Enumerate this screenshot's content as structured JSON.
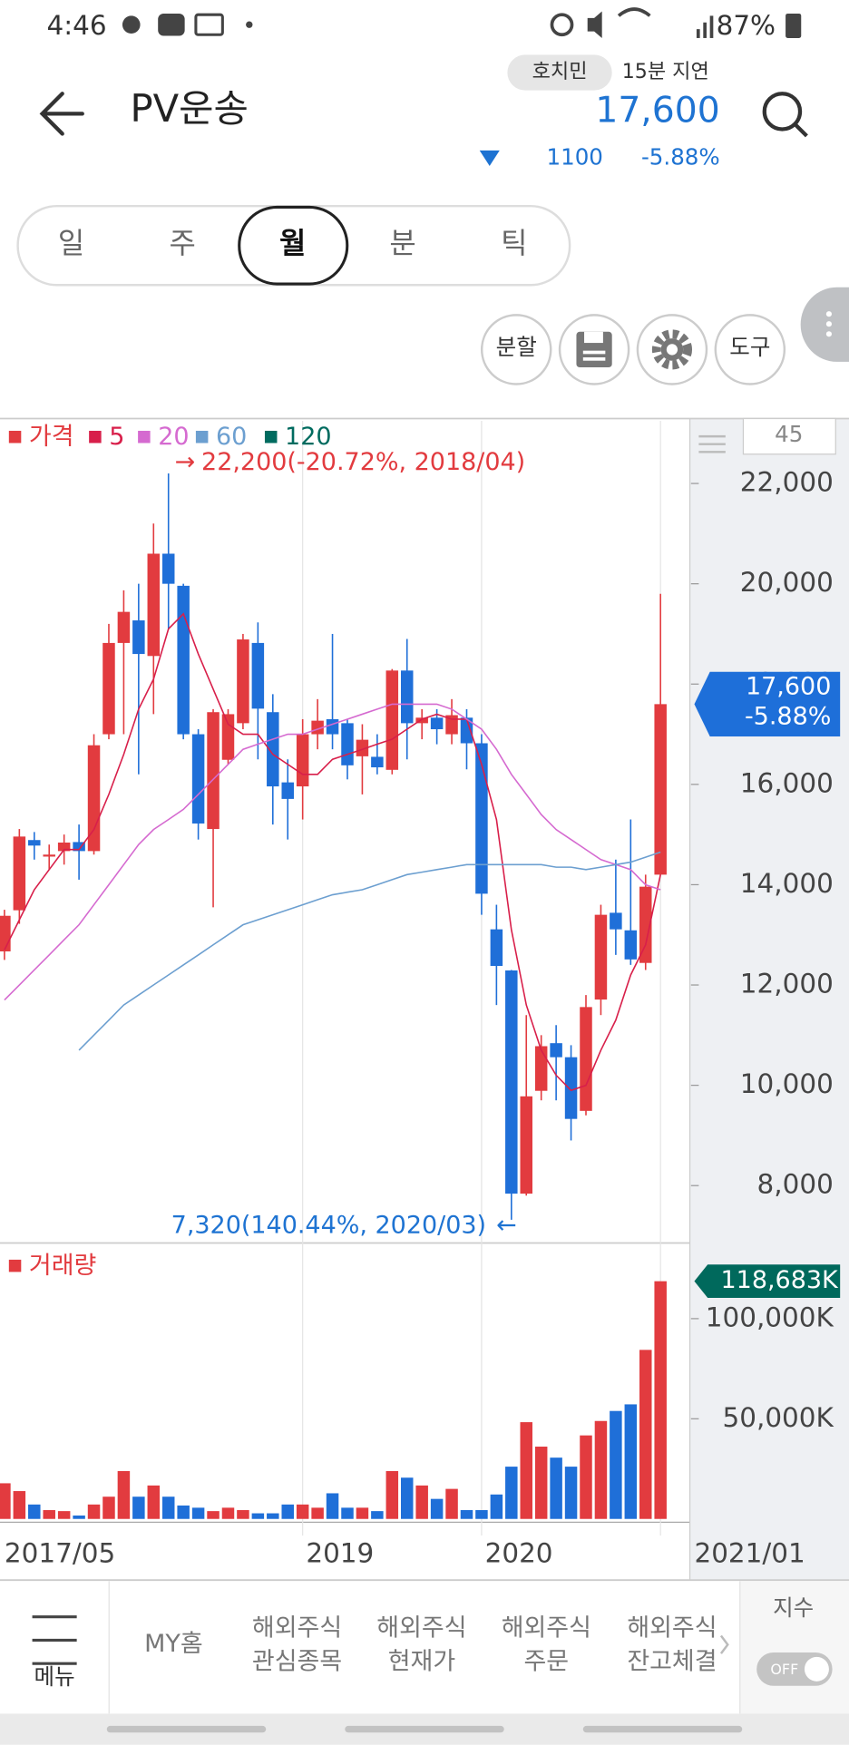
{
  "status_bar": {
    "time": "4:46",
    "battery": "87%"
  },
  "header": {
    "title": "PV운송",
    "market": "호치민",
    "delay": "15분 지연",
    "price": "17,600",
    "change": 1100,
    "change_pct": "-5.88%"
  },
  "period_tabs": [
    "일",
    "주",
    "월",
    "분",
    "틱"
  ],
  "tools": [
    "분할",
    "도구"
  ],
  "chart_data": [
    {
      "type": "candlestick",
      "period_count": 45,
      "categories": [
        "2017/05",
        null,
        null,
        null,
        null,
        null,
        null,
        null,
        null,
        null,
        null,
        null,
        null,
        null,
        null,
        null,
        null,
        null,
        null,
        null,
        "2019",
        null,
        null,
        null,
        null,
        null,
        null,
        null,
        null,
        null,
        null,
        null,
        "2020",
        null,
        null,
        null,
        null,
        null,
        null,
        null,
        null,
        null,
        null,
        null,
        "2021/01"
      ],
      "down_color": "#1f6fd8",
      "series": [
        {
          "name": "가격",
          "color": "#e23b3f",
          "open": [
            12670,
            13490,
            14890,
            14560,
            14670,
            14850,
            14670,
            17000,
            18820,
            19270,
            18560,
            20600,
            19960,
            17000,
            15110,
            16490,
            17220,
            18820,
            17440,
            16040,
            15960,
            17000,
            17300,
            17220,
            16560,
            16550,
            16290,
            18270,
            17220,
            17330,
            17000,
            17330,
            16820,
            13110,
            12290,
            7840,
            9890,
            10840,
            10560,
            9490,
            11710,
            13440,
            13090,
            12440,
            14200
          ],
          "high": [
            13500,
            15110,
            15050,
            14800,
            15000,
            15200,
            17000,
            19200,
            19870,
            20000,
            21200,
            22200,
            20000,
            17100,
            17500,
            17500,
            19000,
            19230,
            17800,
            16500,
            17300,
            17700,
            19000,
            17300,
            17200,
            17000,
            18300,
            18900,
            17500,
            17500,
            17700,
            17500,
            17000,
            13600,
            12300,
            11400,
            11000,
            11200,
            10800,
            11800,
            13600,
            14500,
            15300,
            14200,
            19800
          ],
          "low": [
            12500,
            13220,
            14500,
            14300,
            14400,
            14100,
            14600,
            16900,
            17000,
            16200,
            17400,
            19100,
            16900,
            14900,
            13550,
            16400,
            17100,
            16500,
            15200,
            14900,
            15300,
            16700,
            16700,
            16100,
            15800,
            16200,
            16200,
            16500,
            16900,
            16800,
            16800,
            16300,
            13400,
            11600,
            7320,
            7800,
            9700,
            9700,
            8900,
            9400,
            11400,
            12600,
            12400,
            12300,
            14200
          ],
          "close": [
            13380,
            14960,
            14780,
            14600,
            14840,
            14670,
            16780,
            18820,
            19440,
            18600,
            20600,
            20000,
            17000,
            15220,
            17440,
            17400,
            18890,
            17510,
            15960,
            15710,
            17000,
            17270,
            17000,
            16380,
            16890,
            16340,
            18270,
            17220,
            17330,
            17100,
            17380,
            16820,
            13820,
            12380,
            7840,
            9780,
            10780,
            10560,
            9330,
            11560,
            13400,
            13110,
            12510,
            13960,
            17600
          ]
        },
        {
          "name": "5",
          "color": "#d81f4a",
          "values": [
            12700,
            13300,
            13900,
            14300,
            14700,
            14700,
            15100,
            15800,
            16600,
            17500,
            18100,
            19100,
            19400,
            18600,
            17900,
            17200,
            17000,
            17000,
            16600,
            16400,
            16200,
            16200,
            16500,
            16600,
            16700,
            16800,
            16900,
            17100,
            17300,
            17400,
            17300,
            17300,
            16400,
            15300,
            13100,
            11600,
            10700,
            10200,
            9900,
            10000,
            10700,
            11300,
            12200,
            12800,
            14200
          ]
        },
        {
          "name": "20",
          "color": "#d56ad0",
          "values": [
            11700,
            12000,
            12300,
            12600,
            12900,
            13200,
            13600,
            14000,
            14400,
            14800,
            15100,
            15300,
            15500,
            15800,
            16100,
            16400,
            16700,
            16800,
            16900,
            17000,
            17000,
            17100,
            17200,
            17300,
            17400,
            17500,
            17600,
            17600,
            17600,
            17600,
            17500,
            17300,
            17100,
            16700,
            16200,
            15800,
            15400,
            15100,
            14900,
            14700,
            14500,
            14400,
            14300,
            14000,
            13900
          ]
        },
        {
          "name": "60",
          "color": "#6c9fd0",
          "values": [
            null,
            null,
            null,
            null,
            null,
            10700,
            11000,
            11300,
            11600,
            11800,
            12000,
            12200,
            12400,
            12600,
            12800,
            13000,
            13200,
            13300,
            13400,
            13500,
            13600,
            13700,
            13800,
            13850,
            13900,
            14000,
            14100,
            14200,
            14250,
            14300,
            14350,
            14400,
            14400,
            14400,
            14400,
            14400,
            14400,
            14350,
            14350,
            14300,
            14350,
            14400,
            14450,
            14550,
            14650
          ]
        },
        {
          "name": "120",
          "color": "#006b5f",
          "values": [
            null,
            null,
            null,
            null,
            null,
            null,
            null,
            null,
            null,
            null,
            null,
            null,
            null,
            null,
            null,
            null,
            null,
            null,
            null,
            null,
            null,
            null,
            null,
            null,
            null,
            null,
            null,
            null,
            null,
            null,
            null,
            null,
            null,
            null,
            null,
            null,
            null,
            null,
            null,
            null,
            null,
            null,
            null,
            null,
            null
          ]
        }
      ],
      "ylim": [
        6900,
        23250
      ],
      "yticks": [
        {
          "value": 8000,
          "label": "8,000"
        },
        {
          "value": 10000,
          "label": "10,000"
        },
        {
          "value": 12000,
          "label": "12,000"
        },
        {
          "value": 14000,
          "label": "14,000"
        },
        {
          "value": 16000,
          "label": "16,000"
        },
        {
          "value": 18000,
          "label": "18,000"
        },
        {
          "value": 20000,
          "label": "20,000"
        },
        {
          "value": 22000,
          "label": "22,000"
        }
      ],
      "high_annotation": "22,200(-20.72%, 2018/04)",
      "low_annotation": "7,320(140.44%, 2020/03)",
      "last_price_label": "17,600",
      "last_change_label": "-5.88%"
    },
    {
      "type": "bar",
      "series": [
        {
          "name": "거래량",
          "color": "#e23b3f",
          "values": [
            17800,
            13900,
            7200,
            4400,
            3900,
            1700,
            7200,
            11100,
            23900,
            11100,
            16700,
            11100,
            6700,
            5600,
            3900,
            5600,
            4400,
            2800,
            2800,
            7200,
            7200,
            5600,
            12800,
            5600,
            5600,
            3900,
            23900,
            20600,
            16700,
            10000,
            15000,
            4400,
            4400,
            12200,
            26100,
            48300,
            36100,
            30600,
            26100,
            41700,
            48900,
            53900,
            57200,
            84400,
            118683
          ]
        }
      ],
      "ylim": [
        0,
        136100
      ],
      "yticks": [
        {
          "value": 50000,
          "label": "50,000K"
        },
        {
          "value": 100000,
          "label": "100,000K"
        }
      ],
      "last_value_label": "118,683K"
    }
  ],
  "bottom_nav": {
    "menu": "메뉴",
    "items": [
      [
        "MY홈"
      ],
      [
        "해외주식",
        "관심종목"
      ],
      [
        "해외주식",
        "현재가"
      ],
      [
        "해외주식",
        "주문"
      ],
      [
        "해외주식",
        "잔고체결"
      ]
    ],
    "index": "지수",
    "toggle": "OFF"
  }
}
